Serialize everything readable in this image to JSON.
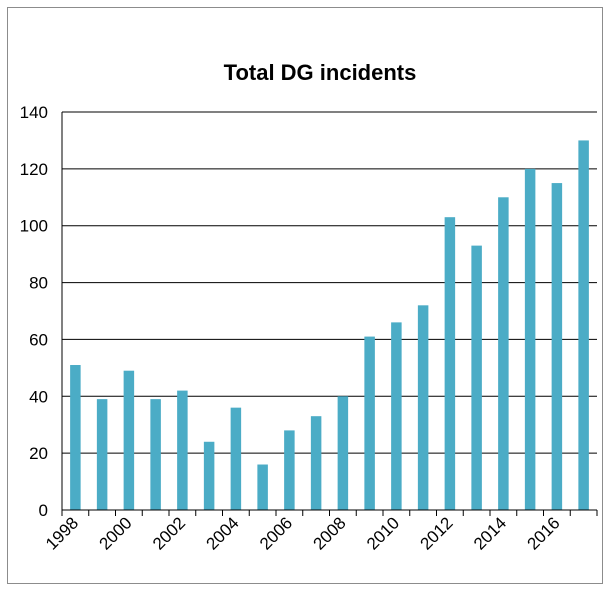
{
  "chart_data": {
    "type": "bar",
    "title": "Total DG incidents",
    "xlabel": "",
    "ylabel": "",
    "categories": [
      "1998",
      "1999",
      "2000",
      "2001",
      "2002",
      "2003",
      "2004",
      "2005",
      "2006",
      "2007",
      "2008",
      "2009",
      "2010",
      "2011",
      "2012",
      "2013",
      "2014",
      "2015",
      "2016",
      "2017"
    ],
    "values": [
      51,
      39,
      49,
      39,
      42,
      24,
      36,
      16,
      28,
      33,
      40,
      61,
      66,
      72,
      103,
      93,
      110,
      120,
      115,
      130
    ],
    "x_tick_labels": [
      "1998",
      "2000",
      "2002",
      "2004",
      "2006",
      "2008",
      "2010",
      "2012",
      "2014",
      "2016"
    ],
    "y_ticks": [
      0,
      20,
      40,
      60,
      80,
      100,
      120,
      140
    ],
    "ylim": [
      0,
      140
    ],
    "grid": true,
    "legend": "none",
    "bar_color": "#4bacc6"
  }
}
